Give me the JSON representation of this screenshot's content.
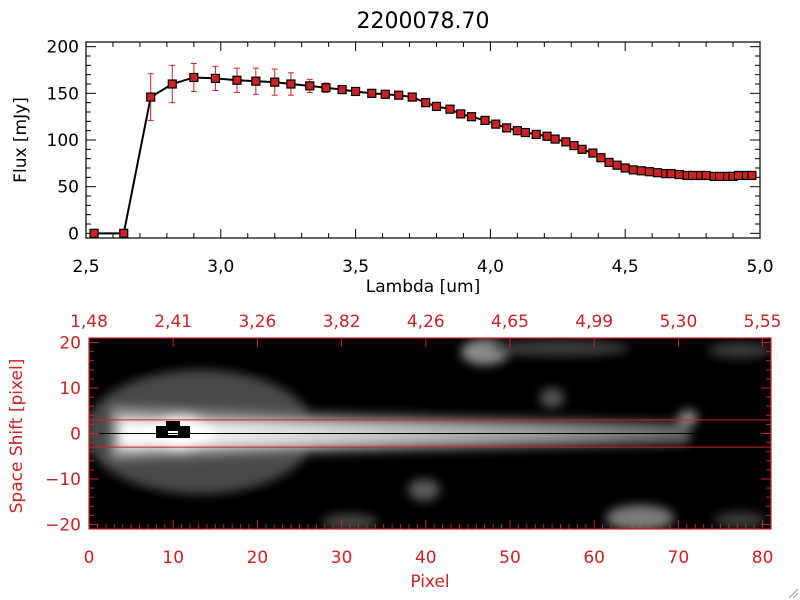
{
  "figure_title": "2200078.70",
  "colors": {
    "axis_black": "#000000",
    "accent_red": "#cc2222",
    "marker_fill": "#cc2222",
    "image_background": "#000000"
  },
  "chart_data": [
    {
      "type": "line",
      "title": "2200078.70",
      "xlabel": "Lambda [um]",
      "ylabel": "Flux [mJy]",
      "xlim": [
        2.5,
        5.0
      ],
      "ylim": [
        -5,
        205
      ],
      "x_ticks": [
        2.5,
        3.0,
        3.5,
        4.0,
        4.5,
        5.0
      ],
      "x_tick_labels": [
        "2,5",
        "3,0",
        "3,5",
        "4,0",
        "4,5",
        "5,0"
      ],
      "y_ticks": [
        0,
        50,
        100,
        150,
        200
      ],
      "y_tick_labels": [
        "0",
        "50",
        "100",
        "150",
        "200"
      ],
      "grid": false,
      "series": [
        {
          "marker": "square",
          "x": [
            2.53,
            2.64,
            2.74,
            2.82,
            2.9,
            2.98,
            3.06,
            3.13,
            3.2,
            3.26,
            3.33,
            3.39,
            3.45,
            3.5,
            3.56,
            3.61,
            3.66,
            3.71,
            3.76,
            3.8,
            3.85,
            3.89,
            3.93,
            3.98,
            4.02,
            4.06,
            4.1,
            4.13,
            4.17,
            4.21,
            4.24,
            4.28,
            4.31,
            4.34,
            4.38,
            4.41,
            4.44,
            4.47,
            4.5,
            4.53,
            4.56,
            4.59,
            4.62,
            4.65,
            4.67,
            4.7,
            4.73,
            4.75,
            4.78,
            4.8,
            4.83,
            4.85,
            4.88,
            4.9,
            4.92,
            4.95,
            4.97
          ],
          "y": [
            0,
            0,
            146,
            160,
            167,
            166,
            164,
            163,
            162,
            160,
            158,
            156,
            154,
            152,
            150,
            149,
            148,
            146,
            140,
            136,
            133,
            128,
            125,
            121,
            117,
            113,
            110,
            108,
            106,
            104,
            101,
            98,
            94,
            90,
            86,
            81,
            76,
            73,
            70,
            68,
            67,
            66,
            65,
            64,
            64,
            63,
            62,
            62,
            62,
            62,
            61,
            61,
            61,
            61,
            62,
            62,
            62
          ],
          "yerr": [
            0,
            0,
            25,
            20,
            15,
            13,
            13,
            14,
            14,
            12,
            7,
            5,
            3,
            3,
            2,
            2,
            2,
            2,
            2,
            2,
            2,
            2,
            2,
            2,
            2,
            2,
            2,
            2,
            2,
            2,
            2,
            2,
            2,
            2,
            2,
            2,
            2,
            2,
            2,
            2,
            2,
            2,
            2,
            2,
            2,
            2,
            2,
            2,
            2,
            2,
            2,
            2,
            2,
            2,
            2,
            2,
            2
          ]
        }
      ]
    },
    {
      "type": "heatmap",
      "xlabel": "Pixel",
      "ylabel": "Space Shift [pixel]",
      "xlim": [
        0,
        81
      ],
      "ylim": [
        -21,
        21
      ],
      "x_ticks": [
        0,
        10,
        20,
        30,
        40,
        50,
        60,
        70,
        80
      ],
      "x_tick_labels": [
        "0",
        "10",
        "20",
        "30",
        "40",
        "50",
        "60",
        "70",
        "80"
      ],
      "y_ticks": [
        -20,
        -10,
        0,
        10,
        20
      ],
      "y_tick_labels": [
        "−20",
        "−10",
        "0",
        "10",
        "20"
      ],
      "top_axis_labels": [
        "1,48",
        "2,41",
        "3,26",
        "3,82",
        "4,26",
        "4,65",
        "4,99",
        "5,30",
        "5,55"
      ],
      "extraction_window": [
        -3,
        3
      ],
      "trace_center": 0,
      "colormap": "grayscale"
    }
  ]
}
